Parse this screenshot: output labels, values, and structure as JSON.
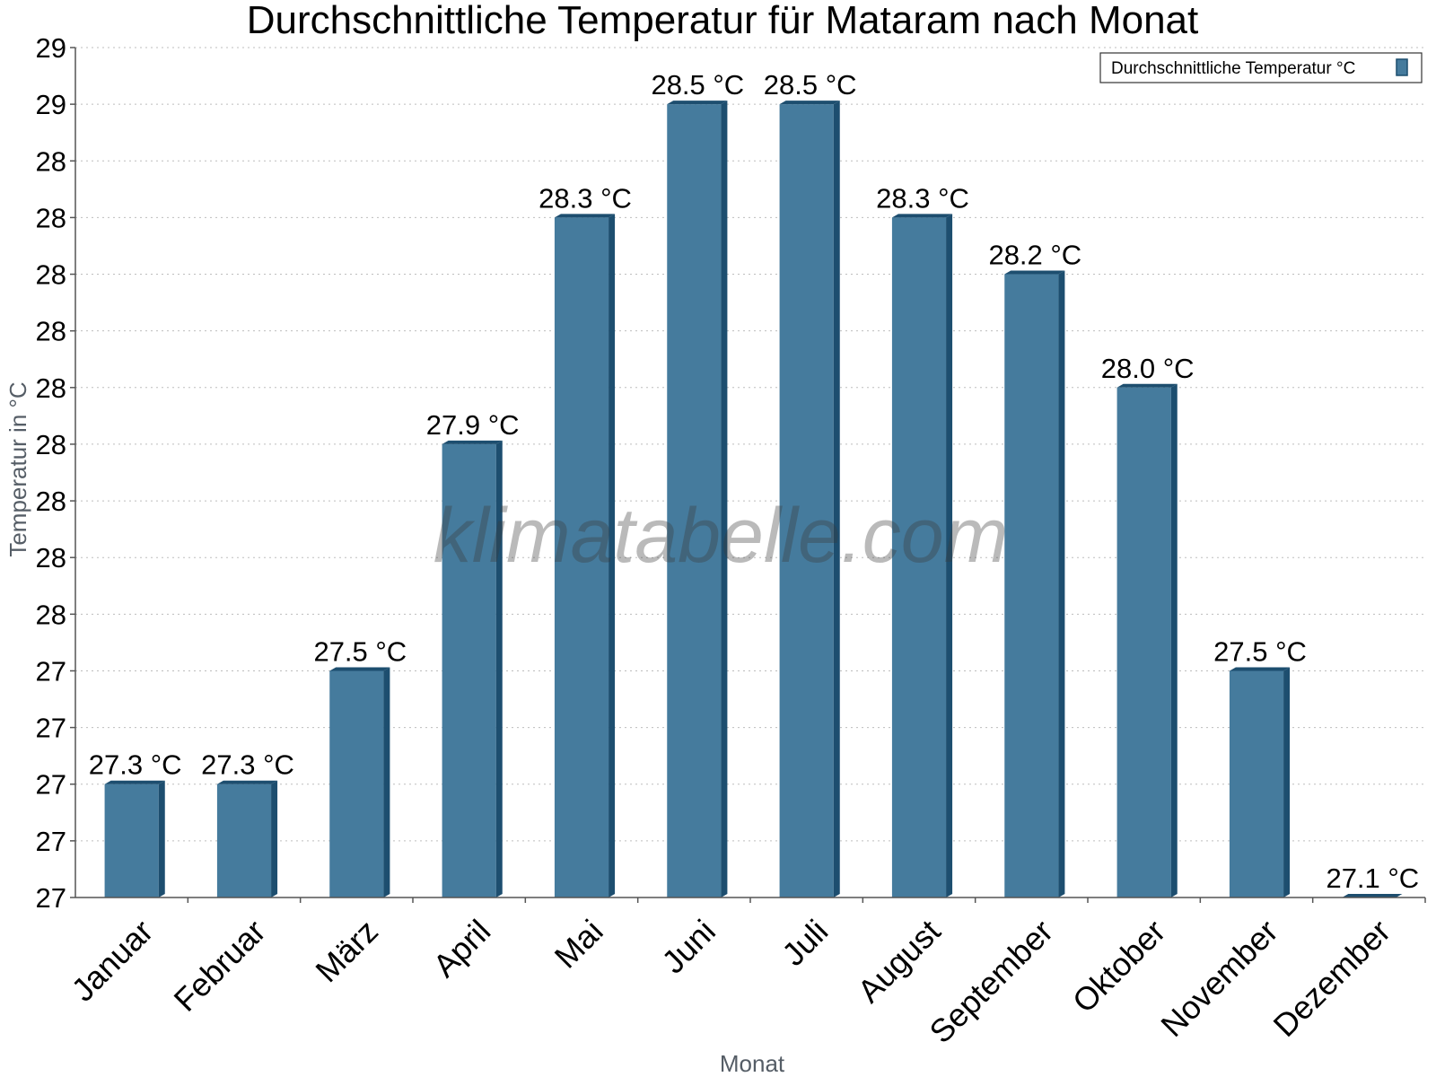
{
  "chart_data": {
    "type": "bar",
    "title": "Durchschnittliche Temperatur für Mataram nach Monat",
    "xlabel": "Monat",
    "ylabel": "Temperatur in °C",
    "categories": [
      "Januar",
      "Februar",
      "März",
      "April",
      "Mai",
      "Juni",
      "Juli",
      "August",
      "September",
      "Oktober",
      "November",
      "Dezember"
    ],
    "series": [
      {
        "name": "Durchschnittliche Temperatur °C",
        "values": [
          27.3,
          27.3,
          27.5,
          27.9,
          28.3,
          28.5,
          28.5,
          28.3,
          28.2,
          28.0,
          27.5,
          27.1
        ],
        "labels": [
          "27.3 °C",
          "27.3 °C",
          "27.5 °C",
          "27.9 °C",
          "28.3 °C",
          "28.5 °C",
          "28.5 °C",
          "28.3 °C",
          "28.2 °C",
          "28.0 °C",
          "27.5 °C",
          "27.1 °C"
        ]
      }
    ],
    "ylim": [
      27.1,
      28.6
    ],
    "yticks": [
      27.1,
      27.2,
      27.3,
      27.4,
      27.5,
      27.6,
      27.7,
      27.8,
      27.9,
      28.0,
      28.1,
      28.2,
      28.3,
      28.4,
      28.5,
      28.6
    ],
    "ytick_labels": [
      "27",
      "27",
      "27",
      "27",
      "27",
      "28",
      "28",
      "28",
      "28",
      "28",
      "28",
      "28",
      "28",
      "28",
      "29",
      "29"
    ],
    "grid": true,
    "legend_position": "top-right",
    "colors": {
      "bar": "#457b9d",
      "bar_dark": "#1d4e6f"
    }
  },
  "watermark": "klimatabelle.com"
}
